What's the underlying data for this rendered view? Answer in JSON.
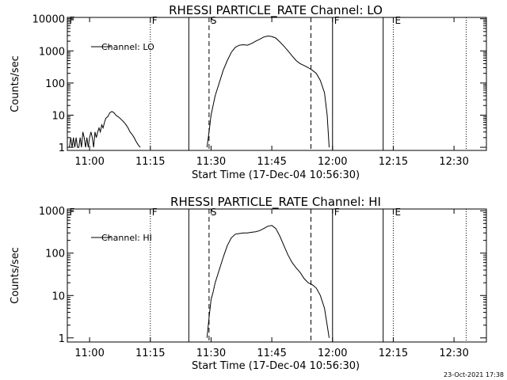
{
  "footer_timestamp": "23-Oct-2021 17:38",
  "chart_data": [
    {
      "type": "line",
      "title": "RHESSI PARTICLE_RATE Channel: LO",
      "xlabel": "Start Time (17-Dec-04 10:56:30)",
      "ylabel": "Counts/sec",
      "yscale": "log",
      "xlim": [
        "10:54:30",
        "12:38:00"
      ],
      "ylim": [
        0.8,
        11000
      ],
      "x_ticks": [
        "11:00",
        "11:15",
        "11:30",
        "11:45",
        "12:00",
        "12:15",
        "12:30"
      ],
      "y_ticks": [
        "1",
        "10",
        "100",
        "1000",
        "10000"
      ],
      "legend": {
        "position": "top-left",
        "entries": [
          "Channel: LO"
        ]
      },
      "series": [
        {
          "name": "Channel: LO",
          "segments": [
            {
              "x": [
                "10:55:00",
                "10:55:20",
                "10:55:40",
                "10:56:00",
                "10:56:20",
                "10:56:40",
                "10:57:00",
                "10:57:20",
                "10:57:40",
                "10:58:00",
                "10:58:20",
                "10:58:40",
                "10:59:00",
                "10:59:20",
                "10:59:40",
                "11:00:00",
                "11:00:20",
                "11:00:40",
                "11:01:00",
                "11:01:20",
                "11:01:40",
                "11:02:00",
                "11:02:20",
                "11:02:40",
                "11:03:00",
                "11:03:20",
                "11:03:40",
                "11:04:00",
                "11:04:30",
                "11:05:00",
                "11:05:30",
                "11:06:00",
                "11:06:30",
                "11:07:00",
                "11:07:30",
                "11:08:00",
                "11:08:30",
                "11:09:00",
                "11:09:30",
                "11:10:00",
                "11:10:30",
                "11:11:00",
                "11:11:30",
                "11:12:00",
                "11:12:30"
              ],
              "y": [
                1,
                2,
                1,
                2,
                1,
                2,
                1,
                1,
                2,
                1,
                3,
                2,
                1,
                2,
                1,
                2,
                3,
                2,
                1,
                3,
                2,
                3,
                4,
                3,
                5,
                4,
                6,
                8,
                9,
                12,
                13,
                12,
                10,
                9,
                8,
                7,
                6,
                5,
                4,
                3,
                2.5,
                2,
                1.5,
                1.2,
                1
              ]
            },
            {
              "x": [
                "11:29:00",
                "11:29:30",
                "11:30:00",
                "11:30:30",
                "11:31:00",
                "11:32:00",
                "11:33:00",
                "11:34:00",
                "11:35:00",
                "11:36:00",
                "11:37:00",
                "11:38:00",
                "11:39:00",
                "11:40:00",
                "11:41:00",
                "11:42:00",
                "11:43:00",
                "11:44:00",
                "11:45:00",
                "11:46:00",
                "11:47:00",
                "11:48:00",
                "11:49:00",
                "11:50:00",
                "11:51:00",
                "11:52:00",
                "11:53:00",
                "11:54:00",
                "11:55:00",
                "11:56:00",
                "11:57:00",
                "11:58:00",
                "11:58:40",
                "11:59:10"
              ],
              "y": [
                1,
                3,
                10,
                20,
                40,
                100,
                250,
                500,
                900,
                1300,
                1500,
                1550,
                1500,
                1700,
                2000,
                2300,
                2700,
                2900,
                2800,
                2500,
                1900,
                1400,
                1000,
                700,
                500,
                400,
                350,
                300,
                250,
                200,
                120,
                50,
                10,
                1
              ]
            }
          ]
        }
      ],
      "annotations": [
        {
          "label": "F",
          "time": "11:15:00",
          "style": "dotted",
          "show_label": true
        },
        {
          "label": "",
          "time": "11:24:30",
          "style": "solid",
          "show_label": false
        },
        {
          "label": "S",
          "time": "11:29:30",
          "style": "dashed",
          "show_label": true
        },
        {
          "label": "",
          "time": "11:54:40",
          "style": "dashed",
          "show_label": false
        },
        {
          "label": "F",
          "time": "12:00:00",
          "style": "solid",
          "show_label": true
        },
        {
          "label": "",
          "time": "12:12:30",
          "style": "solid",
          "show_label": false
        },
        {
          "label": "E",
          "time": "12:15:00",
          "style": "dotted",
          "show_label": true
        },
        {
          "label": "",
          "time": "12:33:00",
          "style": "dotted",
          "show_label": false
        }
      ],
      "top_edge_marker": {
        "label": "F",
        "time": "10:55:00"
      }
    },
    {
      "type": "line",
      "title": "RHESSI PARTICLE_RATE Channel: HI",
      "xlabel": "Start Time (17-Dec-04 10:56:30)",
      "ylabel": "Counts/sec",
      "yscale": "log",
      "xlim": [
        "10:54:30",
        "12:38:00"
      ],
      "ylim": [
        0.8,
        1100
      ],
      "x_ticks": [
        "11:00",
        "11:15",
        "11:30",
        "11:45",
        "12:00",
        "12:15",
        "12:30"
      ],
      "y_ticks": [
        "1",
        "10",
        "100",
        "1000"
      ],
      "legend": {
        "position": "top-left",
        "entries": [
          "Channel: HI"
        ]
      },
      "series": [
        {
          "name": "Channel: HI",
          "segments": [
            {
              "x": [
                "11:29:00",
                "11:29:30",
                "11:30:00",
                "11:30:30",
                "11:31:00",
                "11:32:00",
                "11:33:00",
                "11:34:00",
                "11:35:00",
                "11:36:00",
                "11:37:00",
                "11:38:00",
                "11:39:00",
                "11:40:00",
                "11:41:00",
                "11:42:00",
                "11:43:00",
                "11:44:00",
                "11:45:00",
                "11:46:00",
                "11:47:00",
                "11:48:00",
                "11:49:00",
                "11:50:00",
                "11:51:00",
                "11:52:00",
                "11:53:00",
                "11:54:00",
                "11:55:00",
                "11:56:00",
                "11:57:00",
                "11:58:00",
                "11:58:40",
                "11:59:10"
              ],
              "y": [
                1,
                3,
                8,
                12,
                20,
                40,
                80,
                150,
                230,
                280,
                290,
                300,
                300,
                310,
                320,
                340,
                380,
                430,
                450,
                380,
                250,
                150,
                90,
                60,
                45,
                35,
                25,
                20,
                18,
                15,
                10,
                5,
                2,
                1
              ]
            }
          ]
        }
      ],
      "annotations": [
        {
          "label": "F",
          "time": "11:15:00",
          "style": "dotted",
          "show_label": true
        },
        {
          "label": "",
          "time": "11:24:30",
          "style": "solid",
          "show_label": false
        },
        {
          "label": "S",
          "time": "11:29:30",
          "style": "dashed",
          "show_label": true
        },
        {
          "label": "",
          "time": "11:54:40",
          "style": "dashed",
          "show_label": false
        },
        {
          "label": "F",
          "time": "12:00:00",
          "style": "solid",
          "show_label": true
        },
        {
          "label": "",
          "time": "12:12:30",
          "style": "solid",
          "show_label": false
        },
        {
          "label": "E",
          "time": "12:15:00",
          "style": "dotted",
          "show_label": true
        },
        {
          "label": "",
          "time": "12:33:00",
          "style": "dotted",
          "show_label": false
        }
      ],
      "top_edge_marker": {
        "label": "F",
        "time": "10:55:00"
      }
    }
  ]
}
